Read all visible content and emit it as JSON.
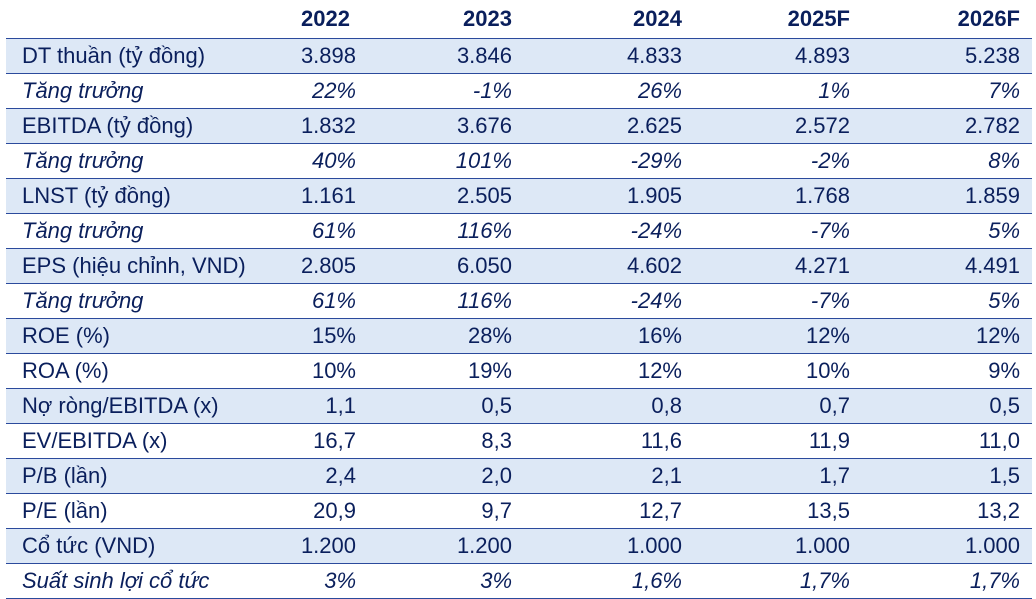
{
  "table": {
    "headers": [
      "",
      "2022",
      "2023",
      "2024",
      "2025F",
      "2026F"
    ],
    "rows": [
      {
        "label": "DT thuần (tỷ đồng)",
        "values": [
          "3.898",
          "3.846",
          "4.833",
          "4.893",
          "5.238"
        ],
        "italic": false,
        "shaded": true
      },
      {
        "label": "Tăng trưởng",
        "values": [
          "22%",
          "-1%",
          "26%",
          "1%",
          "7%"
        ],
        "italic": true,
        "shaded": false
      },
      {
        "label": "EBITDA (tỷ đồng)",
        "values": [
          "1.832",
          "3.676",
          "2.625",
          "2.572",
          "2.782"
        ],
        "italic": false,
        "shaded": true
      },
      {
        "label": "Tăng trưởng",
        "values": [
          "40%",
          "101%",
          "-29%",
          "-2%",
          "8%"
        ],
        "italic": true,
        "shaded": false
      },
      {
        "label": "LNST (tỷ đồng)",
        "values": [
          "1.161",
          "2.505",
          "1.905",
          "1.768",
          "1.859"
        ],
        "italic": false,
        "shaded": true
      },
      {
        "label": "Tăng trưởng",
        "values": [
          "61%",
          "116%",
          "-24%",
          "-7%",
          "5%"
        ],
        "italic": true,
        "shaded": false
      },
      {
        "label": "EPS (hiệu chỉnh, VND)",
        "values": [
          "2.805",
          "6.050",
          "4.602",
          "4.271",
          "4.491"
        ],
        "italic": false,
        "shaded": true
      },
      {
        "label": "Tăng trưởng",
        "values": [
          "61%",
          "116%",
          "-24%",
          "-7%",
          "5%"
        ],
        "italic": true,
        "shaded": false
      },
      {
        "label": "ROE (%)",
        "values": [
          "15%",
          "28%",
          "16%",
          "12%",
          "12%"
        ],
        "italic": false,
        "shaded": true
      },
      {
        "label": "ROA (%)",
        "values": [
          "10%",
          "19%",
          "12%",
          "10%",
          "9%"
        ],
        "italic": false,
        "shaded": false
      },
      {
        "label": "Nợ ròng/EBITDA (x)",
        "values": [
          "1,1",
          "0,5",
          "0,8",
          "0,7",
          "0,5"
        ],
        "italic": false,
        "shaded": true
      },
      {
        "label": "EV/EBITDA (x)",
        "values": [
          "16,7",
          "8,3",
          "11,6",
          "11,9",
          "11,0"
        ],
        "italic": false,
        "shaded": false
      },
      {
        "label": "P/B (lần)",
        "values": [
          "2,4",
          "2,0",
          "2,1",
          "1,7",
          "1,5"
        ],
        "italic": false,
        "shaded": true
      },
      {
        "label": "P/E (lần)",
        "values": [
          "20,9",
          "9,7",
          "12,7",
          "13,5",
          "13,2"
        ],
        "italic": false,
        "shaded": false
      },
      {
        "label": "Cổ tức (VND)",
        "values": [
          "1.200",
          "1.200",
          "1.000",
          "1.000",
          "1.000"
        ],
        "italic": false,
        "shaded": true
      },
      {
        "label": "Suất sinh lợi cổ tức",
        "values": [
          "3%",
          "3%",
          "1,6%",
          "1,7%",
          "1,7%"
        ],
        "italic": true,
        "shaded": false
      }
    ]
  },
  "colors": {
    "text": "#0a1f5c",
    "shade": "#dde8f6",
    "rule": "#2b4a9c"
  }
}
